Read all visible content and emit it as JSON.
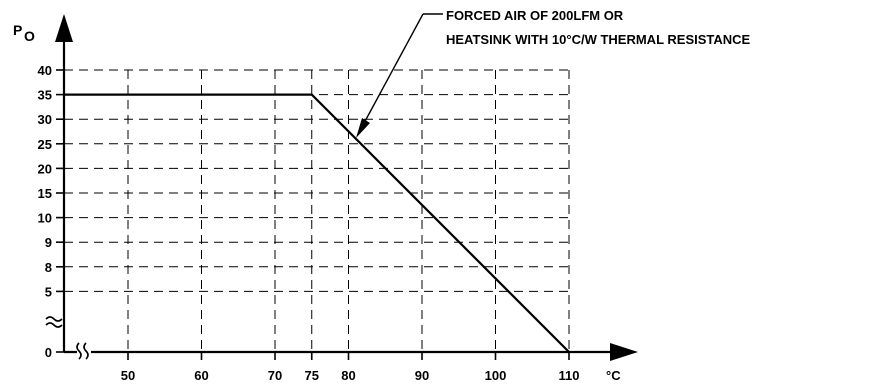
{
  "chart_data": {
    "type": "line",
    "ylabel_main": "P",
    "ylabel_sub": "O",
    "xunit": "°C",
    "annotation_lines": [
      "FORCED AIR OF 200LFM OR",
      "HEATSINK WITH 10°C/W THERMAL RESISTANCE"
    ],
    "y_ticks": [
      0,
      5,
      8,
      9,
      10,
      15,
      20,
      25,
      30,
      35,
      40
    ],
    "x_ticks": [
      50,
      60,
      70,
      75,
      80,
      90,
      100,
      110
    ],
    "x_axis_break": true,
    "y_axis_break": true,
    "grid": true,
    "series": [
      {
        "x": [
          40,
          75,
          110
        ],
        "y": [
          35,
          35,
          0
        ]
      }
    ]
  }
}
